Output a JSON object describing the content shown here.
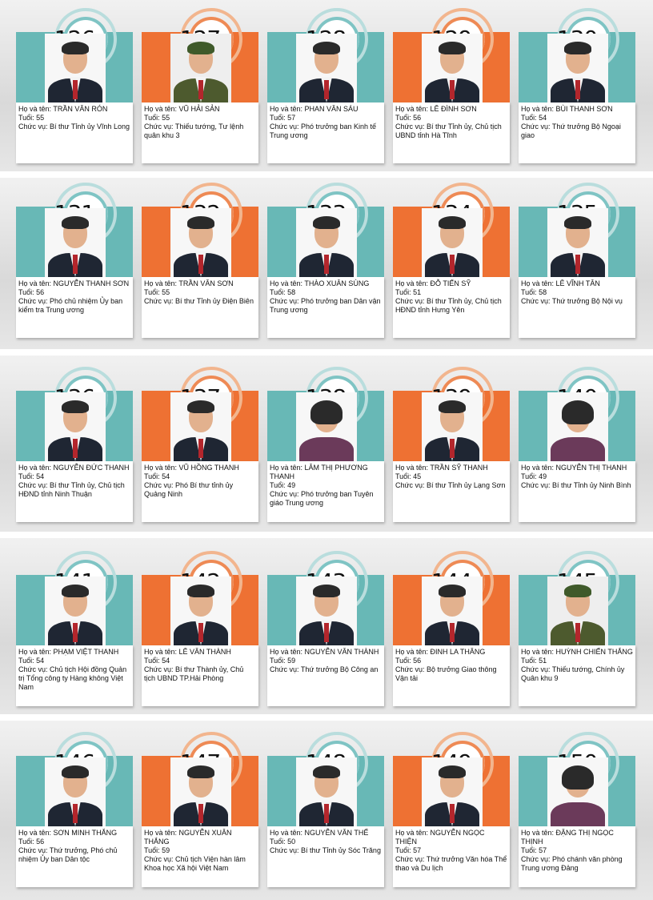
{
  "colors": {
    "teal": "#68b8b6",
    "orange": "#ee7133"
  },
  "cards": [
    {
      "num": "126",
      "line1": "Họ và tên: TRẦN VĂN RÓN",
      "line2": "Tuổi: 55",
      "line3": "Chức vụ: Bí thư Tỉnh ủy Vĩnh Long",
      "photo": "portrait-icon"
    },
    {
      "num": "127",
      "line1": "Họ và tên: VŨ HẢI SẢN",
      "line2": "Tuổi: 55",
      "line3": "Chức vụ: Thiếu tướng, Tư lệnh quân khu 3",
      "photo": "portrait-military-icon"
    },
    {
      "num": "128",
      "line1": "Họ và tên: PHAN VĂN SÁU",
      "line2": "Tuổi: 57",
      "line3": "Chức vụ: Phó trưởng ban Kinh tế Trung ương",
      "photo": "portrait-icon"
    },
    {
      "num": "129",
      "line1": "Họ và tên: LÊ ĐÌNH SƠN",
      "line2": "Tuổi: 56",
      "line3": "Chức vụ: Bí thư Tỉnh ủy, Chủ tịch UBND tỉnh Hà Tĩnh",
      "photo": "portrait-icon"
    },
    {
      "num": "130",
      "line1": "Họ và tên: BÙI THANH SƠN",
      "line2": "Tuổi: 54",
      "line3": "Chức vụ: Thứ trưởng Bộ Ngoại giao",
      "photo": "portrait-icon"
    },
    {
      "num": "131",
      "line1": "Họ và tên: NGUYỄN THANH SƠN",
      "line2": "Tuổi: 56",
      "line3": "Chức vụ: Phó chủ nhiệm Ủy ban kiểm tra Trung ương",
      "photo": "portrait-icon"
    },
    {
      "num": "132",
      "line1": "Họ và tên: TRẦN VĂN SƠN",
      "line2": "Tuổi: 55",
      "line3": "Chức vụ: Bí thư Tỉnh ủy Điện Biên",
      "photo": "portrait-icon"
    },
    {
      "num": "133",
      "line1": "Họ và tên: THÀO XUÂN SÙNG",
      "line2": "Tuổi: 58",
      "line3": "Chức vụ: Phó trưởng ban Dân vận Trung ương",
      "photo": "portrait-icon"
    },
    {
      "num": "134",
      "line1": "Họ và tên: ĐỖ TIẾN SỸ",
      "line2": "Tuổi: 51",
      "line3": "Chức vụ: Bí thư Tỉnh ủy, Chủ tịch HĐND tỉnh Hưng Yên",
      "photo": "portrait-icon"
    },
    {
      "num": "135",
      "line1": "Họ và tên: LÊ VĨNH TÂN",
      "line2": "Tuổi: 58",
      "line3": "Chức vụ: Thứ trưởng Bộ Nội vụ",
      "photo": "portrait-icon"
    },
    {
      "num": "136",
      "line1": "Họ và tên: NGUYỄN ĐỨC THANH",
      "line2": "Tuổi: 54",
      "line3": "Chức vụ: Bí thư Tỉnh ủy, Chủ tịch HĐND tỉnh Ninh Thuận",
      "photo": "portrait-icon"
    },
    {
      "num": "137",
      "line1": "Họ và tên: VŨ HỒNG THANH",
      "line2": "Tuổi: 54",
      "line3": "Chức vụ: Phó Bí thư tỉnh ủy Quảng Ninh",
      "photo": "portrait-icon"
    },
    {
      "num": "138",
      "line1": "Họ và tên: LÂM THỊ PHƯƠNG THANH",
      "line2": "Tuổi: 49",
      "line3": "Chức vụ: Phó trưởng ban Tuyên giáo Trung ương",
      "photo": "portrait-female-icon"
    },
    {
      "num": "139",
      "line1": "Họ và tên: TRẦN SỸ THANH",
      "line2": "Tuổi: 45",
      "line3": "Chức vụ: Bí thư Tỉnh ủy Lạng Sơn",
      "photo": "portrait-icon"
    },
    {
      "num": "140",
      "line1": "Họ và tên: NGUYỄN THỊ THANH",
      "line2": "Tuổi: 49",
      "line3": "Chức vụ: Bí thư Tỉnh ủy Ninh Bình",
      "photo": "portrait-female-icon"
    },
    {
      "num": "141",
      "line1": "Họ và tên: PHẠM VIỆT THANH",
      "line2": "Tuổi: 54",
      "line3": "Chức vụ: Chủ tịch Hội đồng Quản trị Tổng công ty Hàng không Việt Nam",
      "photo": "portrait-icon"
    },
    {
      "num": "142",
      "line1": "Họ và tên: LÊ VĂN THÀNH",
      "line2": "Tuổi: 54",
      "line3": "Chức vụ: Bí thư Thành ủy, Chủ tịch UBND TP.Hải Phòng",
      "photo": "portrait-icon"
    },
    {
      "num": "143",
      "line1": "Họ và tên: NGUYỄN VĂN THÀNH",
      "line2": "Tuổi: 59",
      "line3": "Chức vụ: Thứ trưởng Bộ Công an",
      "photo": "portrait-icon"
    },
    {
      "num": "144",
      "line1": "Họ và tên: ĐINH LA THĂNG",
      "line2": "Tuổi: 56",
      "line3": "Chức vụ: Bộ trưởng Giao thông Vận tải",
      "photo": "portrait-icon"
    },
    {
      "num": "145",
      "line1": "Họ và tên: HUỲNH CHIẾN THẮNG",
      "line2": "Tuổi: 51",
      "line3": "Chức vụ: Thiếu tướng, Chính ủy Quân khu 9",
      "photo": "portrait-military-icon"
    },
    {
      "num": "146",
      "line1": "Họ và tên: SƠN MINH THẮNG",
      "line2": "Tuổi: 56",
      "line3": "Chức vụ: Thứ trưởng, Phó chủ nhiệm Ủy ban Dân tộc",
      "photo": "portrait-icon"
    },
    {
      "num": "147",
      "line1": "Họ và tên: NGUYỄN XUÂN THẮNG",
      "line2": "Tuổi: 59",
      "line3": "Chức vụ: Chủ tịch Viện hàn lâm Khoa học Xã hội Việt Nam",
      "photo": "portrait-icon"
    },
    {
      "num": "148",
      "line1": "Họ và tên: NGUYỄN VĂN THỂ",
      "line2": "Tuổi: 50",
      "line3": "Chức vụ: Bí thư Tỉnh ủy Sóc Trăng",
      "photo": "portrait-icon"
    },
    {
      "num": "149",
      "line1": "Họ và tên: NGUYỄN NGỌC THIỆN",
      "line2": "Tuổi: 57",
      "line3": "Chức vụ: Thứ trưởng Văn hóa Thể thao và Du lịch",
      "photo": "portrait-icon"
    },
    {
      "num": "150",
      "line1": "Họ và tên: ĐẶNG THỊ NGỌC THỊNH",
      "line2": "Tuổi: 57",
      "line3": "Chức vụ: Phó chánh văn phòng Trung ương Đảng",
      "photo": "portrait-female-icon"
    }
  ]
}
